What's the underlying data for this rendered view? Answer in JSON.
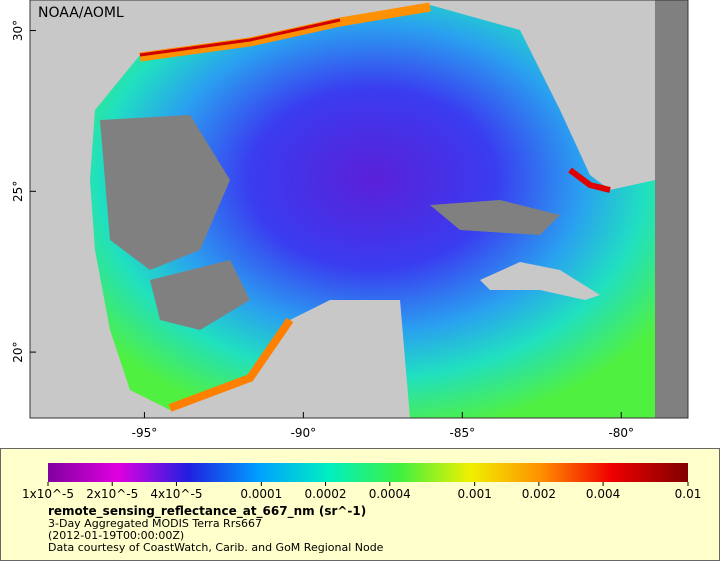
{
  "map": {
    "watermark": "NOAA/AOML",
    "lonlim": [
      -98.6,
      -77.9
    ],
    "latlim": [
      17.95,
      30.95
    ],
    "lon_ticks": [
      {
        "value": -95,
        "label": "-95°"
      },
      {
        "value": -90,
        "label": "-90°"
      },
      {
        "value": -85,
        "label": "-85°"
      },
      {
        "value": -80,
        "label": "-80°"
      }
    ],
    "lat_ticks": [
      {
        "value": 20,
        "label": "20°"
      },
      {
        "value": 25,
        "label": "25°"
      },
      {
        "value": 30,
        "label": "30°"
      }
    ]
  },
  "legend": {
    "range": [
      1e-05,
      0.01
    ],
    "log": true,
    "ticks": [
      {
        "value": 1e-05,
        "label": "1x10^-5"
      },
      {
        "value": 2e-05,
        "label": "2x10^-5"
      },
      {
        "value": 4e-05,
        "label": "4x10^-5"
      },
      {
        "value": 0.0001,
        "label": "0.0001"
      },
      {
        "value": 0.0002,
        "label": "0.0002"
      },
      {
        "value": 0.0004,
        "label": "0.0004"
      },
      {
        "value": 0.001,
        "label": "0.001"
      },
      {
        "value": 0.002,
        "label": "0.002"
      },
      {
        "value": 0.004,
        "label": "0.004"
      },
      {
        "value": 0.01,
        "label": "0.01"
      }
    ],
    "title": "remote_sensing_reflectance_at_667_nm (sr^-1)",
    "lines": [
      "3-Day Aggregated MODIS Terra Rrs667",
      "(2012-01-19T00:00:00Z)",
      "Data courtesy of CoastWatch, Carib. and GoM Regional Node"
    ]
  }
}
